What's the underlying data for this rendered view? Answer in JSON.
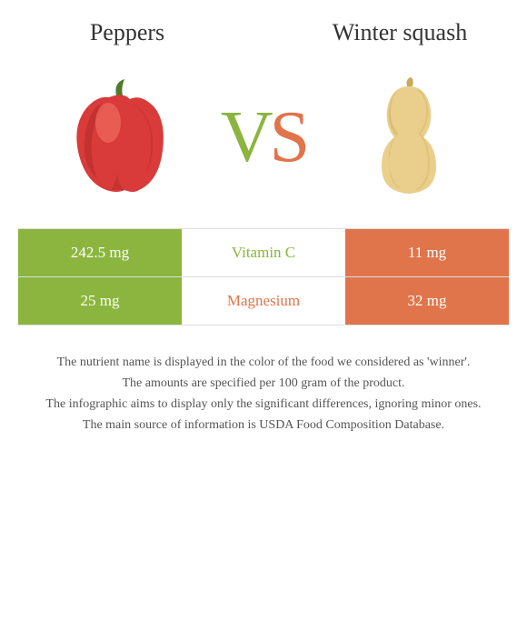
{
  "foods": {
    "left": {
      "title": "Peppers"
    },
    "right": {
      "title": "Winter squash"
    }
  },
  "vs": {
    "v": "V",
    "s": "S"
  },
  "colors": {
    "left": "#8bb53f",
    "right": "#e0744a",
    "text": "#333333",
    "pepper_body": "#d93a3a",
    "pepper_highlight": "#ef6b5f",
    "pepper_dark": "#b42c2c",
    "pepper_stem": "#4e7a2a",
    "squash_body": "#e9cf8b",
    "squash_dark": "#d7b66a",
    "squash_stem": "#c9a85a"
  },
  "rows": [
    {
      "left": "242.5 mg",
      "mid": "Vitamin C",
      "right": "11 mg",
      "winner": "left"
    },
    {
      "left": "25 mg",
      "mid": "Magnesium",
      "right": "32 mg",
      "winner": "right"
    }
  ],
  "footer": [
    "The nutrient name is displayed in the color of the food we considered as 'winner'.",
    "The amounts are specified per 100 gram of the product.",
    "The infographic aims to display only the significant differences, ignoring minor ones.",
    "The main source of information is USDA Food Composition Database."
  ]
}
